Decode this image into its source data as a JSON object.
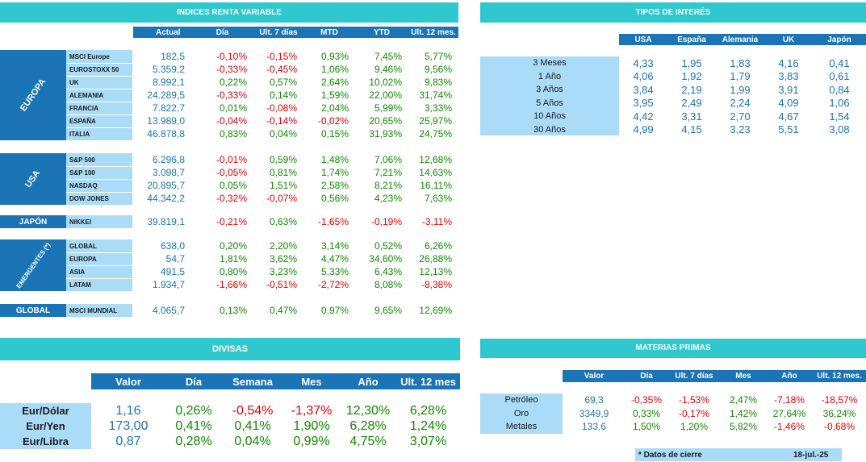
{
  "equities": {
    "title": "INDICES RENTA VARIABLE",
    "columns": [
      "Actual",
      "Día",
      "Ult. 7 días",
      "MTD",
      "YTD",
      "Ult. 12 mes."
    ],
    "groups": [
      {
        "region": "EUROPA",
        "rows": [
          {
            "name": "MSCI Europe",
            "values": [
              "182,5",
              "-0,10%",
              "-0,15%",
              "0,93%",
              "7,45%",
              "5,77%"
            ]
          },
          {
            "name": "EUROSTOXX 50",
            "values": [
              "5.359,2",
              "-0,33%",
              "-0,45%",
              "1,06%",
              "9,46%",
              "9,56%"
            ]
          },
          {
            "name": "UK",
            "values": [
              "8.992,1",
              "0,22%",
              "0,57%",
              "2,64%",
              "10,02%",
              "9,83%"
            ]
          },
          {
            "name": "ALEMANIA",
            "values": [
              "24.289,5",
              "-0,33%",
              "0,14%",
              "1,59%",
              "22,00%",
              "31,74%"
            ]
          },
          {
            "name": "FRANCIA",
            "values": [
              "7.822,7",
              "0,01%",
              "-0,08%",
              "2,04%",
              "5,99%",
              "3,33%"
            ]
          },
          {
            "name": "ESPAÑA",
            "values": [
              "13.989,0",
              "-0,04%",
              "-0,14%",
              "-0,02%",
              "20,65%",
              "25,97%"
            ]
          },
          {
            "name": "ITALIA",
            "values": [
              "46.878,8",
              "0,83%",
              "0,04%",
              "0,15%",
              "31,93%",
              "24,75%"
            ]
          }
        ]
      },
      {
        "region": "USA",
        "rows": [
          {
            "name": "S&P 500",
            "values": [
              "6.296,8",
              "-0,01%",
              "0,59%",
              "1,48%",
              "7,06%",
              "12,68%"
            ]
          },
          {
            "name": "S&P 100",
            "values": [
              "3.098,7",
              "-0,05%",
              "0,81%",
              "1,74%",
              "7,21%",
              "14,63%"
            ]
          },
          {
            "name": "NASDAQ",
            "values": [
              "20.895,7",
              "0,05%",
              "1,51%",
              "2,58%",
              "8,21%",
              "16,11%"
            ]
          },
          {
            "name": "DOW JONES",
            "values": [
              "44.342,2",
              "-0,32%",
              "-0,07%",
              "0,56%",
              "4,23%",
              "7,63%"
            ]
          }
        ]
      },
      {
        "region": "JAPÓN",
        "rows": [
          {
            "name": "NIKKEI",
            "values": [
              "39.819,1",
              "-0,21%",
              "0,63%",
              "-1,65%",
              "-0,19%",
              "-3,11%"
            ]
          }
        ]
      },
      {
        "region": "EMERGENTES (*)",
        "rows": [
          {
            "name": "GLOBAL",
            "values": [
              "638,0",
              "0,20%",
              "2,20%",
              "3,14%",
              "0,52%",
              "6,26%"
            ]
          },
          {
            "name": "EUROPA",
            "values": [
              "54,7",
              "1,81%",
              "3,62%",
              "4,47%",
              "34,60%",
              "26,88%"
            ]
          },
          {
            "name": "ASIA",
            "values": [
              "491,5",
              "0,80%",
              "3,23%",
              "5,33%",
              "6,43%",
              "12,13%"
            ]
          },
          {
            "name": "LATAM",
            "values": [
              "1.934,7",
              "-1,66%",
              "-0,51%",
              "-2,72%",
              "8,08%",
              "-8,38%"
            ]
          }
        ]
      },
      {
        "region": "GLOBAL",
        "rows": [
          {
            "name": "MSCI MUNDIAL",
            "values": [
              "4.065,7",
              "0,13%",
              "0,47%",
              "0,97%",
              "9,65%",
              "12,69%"
            ]
          }
        ]
      }
    ]
  },
  "rates": {
    "title": "TIPOS DE INTERÉS",
    "columns": [
      "USA",
      "España",
      "Alemania",
      "UK",
      "Japón"
    ],
    "rows": [
      {
        "name": "3 Meses",
        "values": [
          "4,33",
          "1,95",
          "1,83",
          "4,16",
          "0,41"
        ]
      },
      {
        "name": "1 Año",
        "values": [
          "4,06",
          "1,92",
          "1,79",
          "3,83",
          "0,61"
        ]
      },
      {
        "name": "3 Años",
        "values": [
          "3,84",
          "2,19",
          "1,99",
          "3,91",
          "0,84"
        ]
      },
      {
        "name": "5 Años",
        "values": [
          "3,95",
          "2,49",
          "2,24",
          "4,09",
          "1,06"
        ]
      },
      {
        "name": "10 Años",
        "values": [
          "4,42",
          "3,31",
          "2,70",
          "4,67",
          "1,54"
        ]
      },
      {
        "name": "30 Años",
        "values": [
          "4,99",
          "4,15",
          "3,23",
          "5,51",
          "3,08"
        ]
      }
    ]
  },
  "currencies": {
    "title": "DIVISAS",
    "columns": [
      "Valor",
      "Día",
      "Semana",
      "Mes",
      "Año",
      "Ult. 12 mes"
    ],
    "rows": [
      {
        "name": "Eur/Dólar",
        "values": [
          "1,16",
          "0,26%",
          "-0,54%",
          "-1,37%",
          "12,30%",
          "6,28%"
        ]
      },
      {
        "name": "Eur/Yen",
        "values": [
          "173,00",
          "0,41%",
          "0,41%",
          "1,90%",
          "6,28%",
          "1,24%"
        ]
      },
      {
        "name": "Eur/Libra",
        "values": [
          "0,87",
          "0,28%",
          "0,04%",
          "0,99%",
          "4,75%",
          "3,07%"
        ]
      }
    ]
  },
  "commodities": {
    "title": "MATERIAS PRIMAS",
    "columns": [
      "Valor",
      "Día",
      "Ult. 7 días",
      "Mes",
      "Año",
      "Ult. 12 mes."
    ],
    "rows": [
      {
        "name": "Petróleo",
        "values": [
          "69,3",
          "-0,35%",
          "-1,53%",
          "2,47%",
          "-7,18%",
          "-18,57%"
        ]
      },
      {
        "name": "Oro",
        "values": [
          "3349,9",
          "0,33%",
          "-0,17%",
          "1,42%",
          "27,64%",
          "36,24%"
        ]
      },
      {
        "name": "Metales",
        "values": [
          "133,6",
          "1,50%",
          "1,20%",
          "5,82%",
          "-1,46%",
          "-0,68%"
        ]
      }
    ]
  },
  "footer": {
    "note": "* Datos de cierre",
    "date": "18-jul.-25"
  },
  "colors": {
    "banner": "#30c8cf",
    "header": "#1a74b6",
    "row_band": "#aadcf8",
    "positive": "#0f8a00",
    "negative": "#e60000",
    "value": "#1a74b6"
  }
}
